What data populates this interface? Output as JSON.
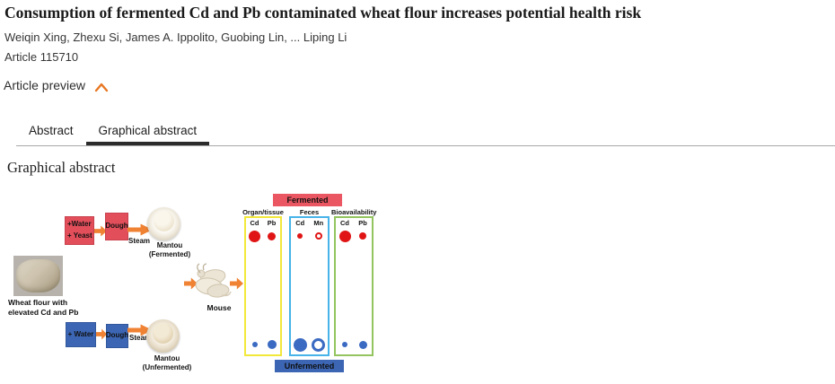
{
  "page": {
    "title": "Consumption of fermented Cd and Pb contaminated wheat flour increases potential health risk",
    "authors": "Weiqin Xing, Zhexu Si, James A. Ippolito, Guobing Lin, ... Liping Li",
    "article_number": "Article 115710",
    "preview_toggle_label": "Article preview"
  },
  "tabs": {
    "abstract": "Abstract",
    "graphical": "Graphical abstract",
    "active_tab": "Graphical abstract"
  },
  "section": {
    "heading": "Graphical abstract"
  },
  "figure": {
    "wheat_flour": {
      "label_line1": "Wheat flour with",
      "label_line2": "elevated Cd and Pb"
    },
    "fermented_path": {
      "water_line": "+Water",
      "yeast_line": "+ Yeast",
      "dough": "Dough",
      "steam": "Steam",
      "product_line1": "Mantou",
      "product_line2": "(Fermented)"
    },
    "unfermented_path": {
      "water_line": "+ Water",
      "dough": "Dough",
      "steam": "Steam",
      "product_line1": "Mantou",
      "product_line2": "(Unfermented)"
    },
    "mouse_label": "Mouse",
    "results": {
      "fermented_banner": "Fermented",
      "unfermented_banner": "Unfermented",
      "panels": [
        {
          "title": "Organ/tissue",
          "col1": "Cd",
          "col2": "Pb"
        },
        {
          "title": "Feces",
          "col1": "Cd",
          "col2": "Mn"
        },
        {
          "title": "Bioavailability",
          "col1": "Cd",
          "col2": "Pb"
        }
      ],
      "bubbles": {
        "organ_fermented": [
          {
            "d": 13,
            "fill": true,
            "color": "#e01414"
          },
          {
            "d": 9,
            "fill": true,
            "color": "#e01414"
          }
        ],
        "organ_unfermented": [
          {
            "d": 6,
            "fill": true,
            "color": "#3a6ac2"
          },
          {
            "d": 10,
            "fill": true,
            "color": "#3a6ac2"
          }
        ],
        "feces_fermented": [
          {
            "d": 6,
            "fill": true,
            "color": "#e01414"
          },
          {
            "d": 8,
            "fill": false,
            "bw": 2,
            "color": "#e01414"
          }
        ],
        "feces_unfermented": [
          {
            "d": 15,
            "fill": true,
            "color": "#3a6ac2"
          },
          {
            "d": 15,
            "fill": false,
            "bw": 3,
            "color": "#3a6ac2"
          }
        ],
        "bio_fermented": [
          {
            "d": 13,
            "fill": true,
            "color": "#e01414"
          },
          {
            "d": 8,
            "fill": true,
            "color": "#e01414"
          }
        ],
        "bio_unfermented": [
          {
            "d": 6,
            "fill": true,
            "color": "#3a6ac2"
          },
          {
            "d": 9,
            "fill": true,
            "color": "#3a6ac2"
          }
        ]
      }
    },
    "colors": {
      "process_red": "#e34e5b",
      "process_blue": "#3c66b4",
      "banner_red": "#ea5661",
      "banner_blue": "#3c66b4",
      "arrow_orange": "#f08233",
      "chevron_orange": "#e87722",
      "panel_border_yellow": "#f2e83a",
      "panel_border_blue": "#47b3e8",
      "panel_border_green": "#93c45f"
    }
  }
}
